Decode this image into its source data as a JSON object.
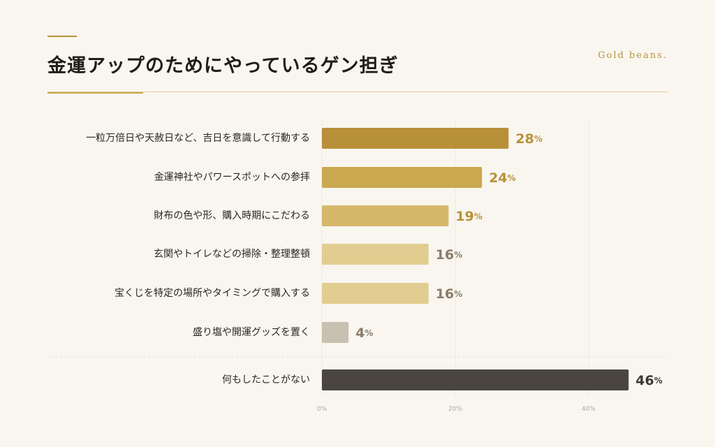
{
  "header": {
    "title": "金運アップのためにやっているゲン担ぎ",
    "brand": "Gold beans."
  },
  "chart_data": {
    "type": "bar",
    "orientation": "horizontal",
    "title": "金運アップのためにやっているゲン担ぎ",
    "categories": [
      "一粒万倍日や天赦日など、吉日を意識して行動する",
      "金運神社やパワースポットへの参拝",
      "財布の色や形、購入時期にこだわる",
      "玄関やトイレなどの掃除・整理整頓",
      "宝くじを特定の場所やタイミングで購入する",
      "盛り塩や開運グッズを置く",
      "何もしたことがない"
    ],
    "values": [
      28,
      24,
      19,
      16,
      16,
      4,
      46
    ],
    "value_labels": [
      "28",
      "24",
      "19",
      "16",
      "16",
      "4",
      "46"
    ],
    "unit": "%",
    "bar_colors": [
      "#b89039",
      "#c9a84f",
      "#d6b86c",
      "#e2cd90",
      "#e2cd90",
      "#c8c0b0",
      "#4a453f"
    ],
    "label_colors": [
      "#b8923a",
      "#b8923a",
      "#b8923a",
      "#8a7c6a",
      "#8a7c6a",
      "#8a7c6a",
      "#3d3832"
    ],
    "xticks": [
      "0%",
      "20%",
      "40%"
    ],
    "xlim": [
      0,
      52
    ],
    "grid": true
  }
}
